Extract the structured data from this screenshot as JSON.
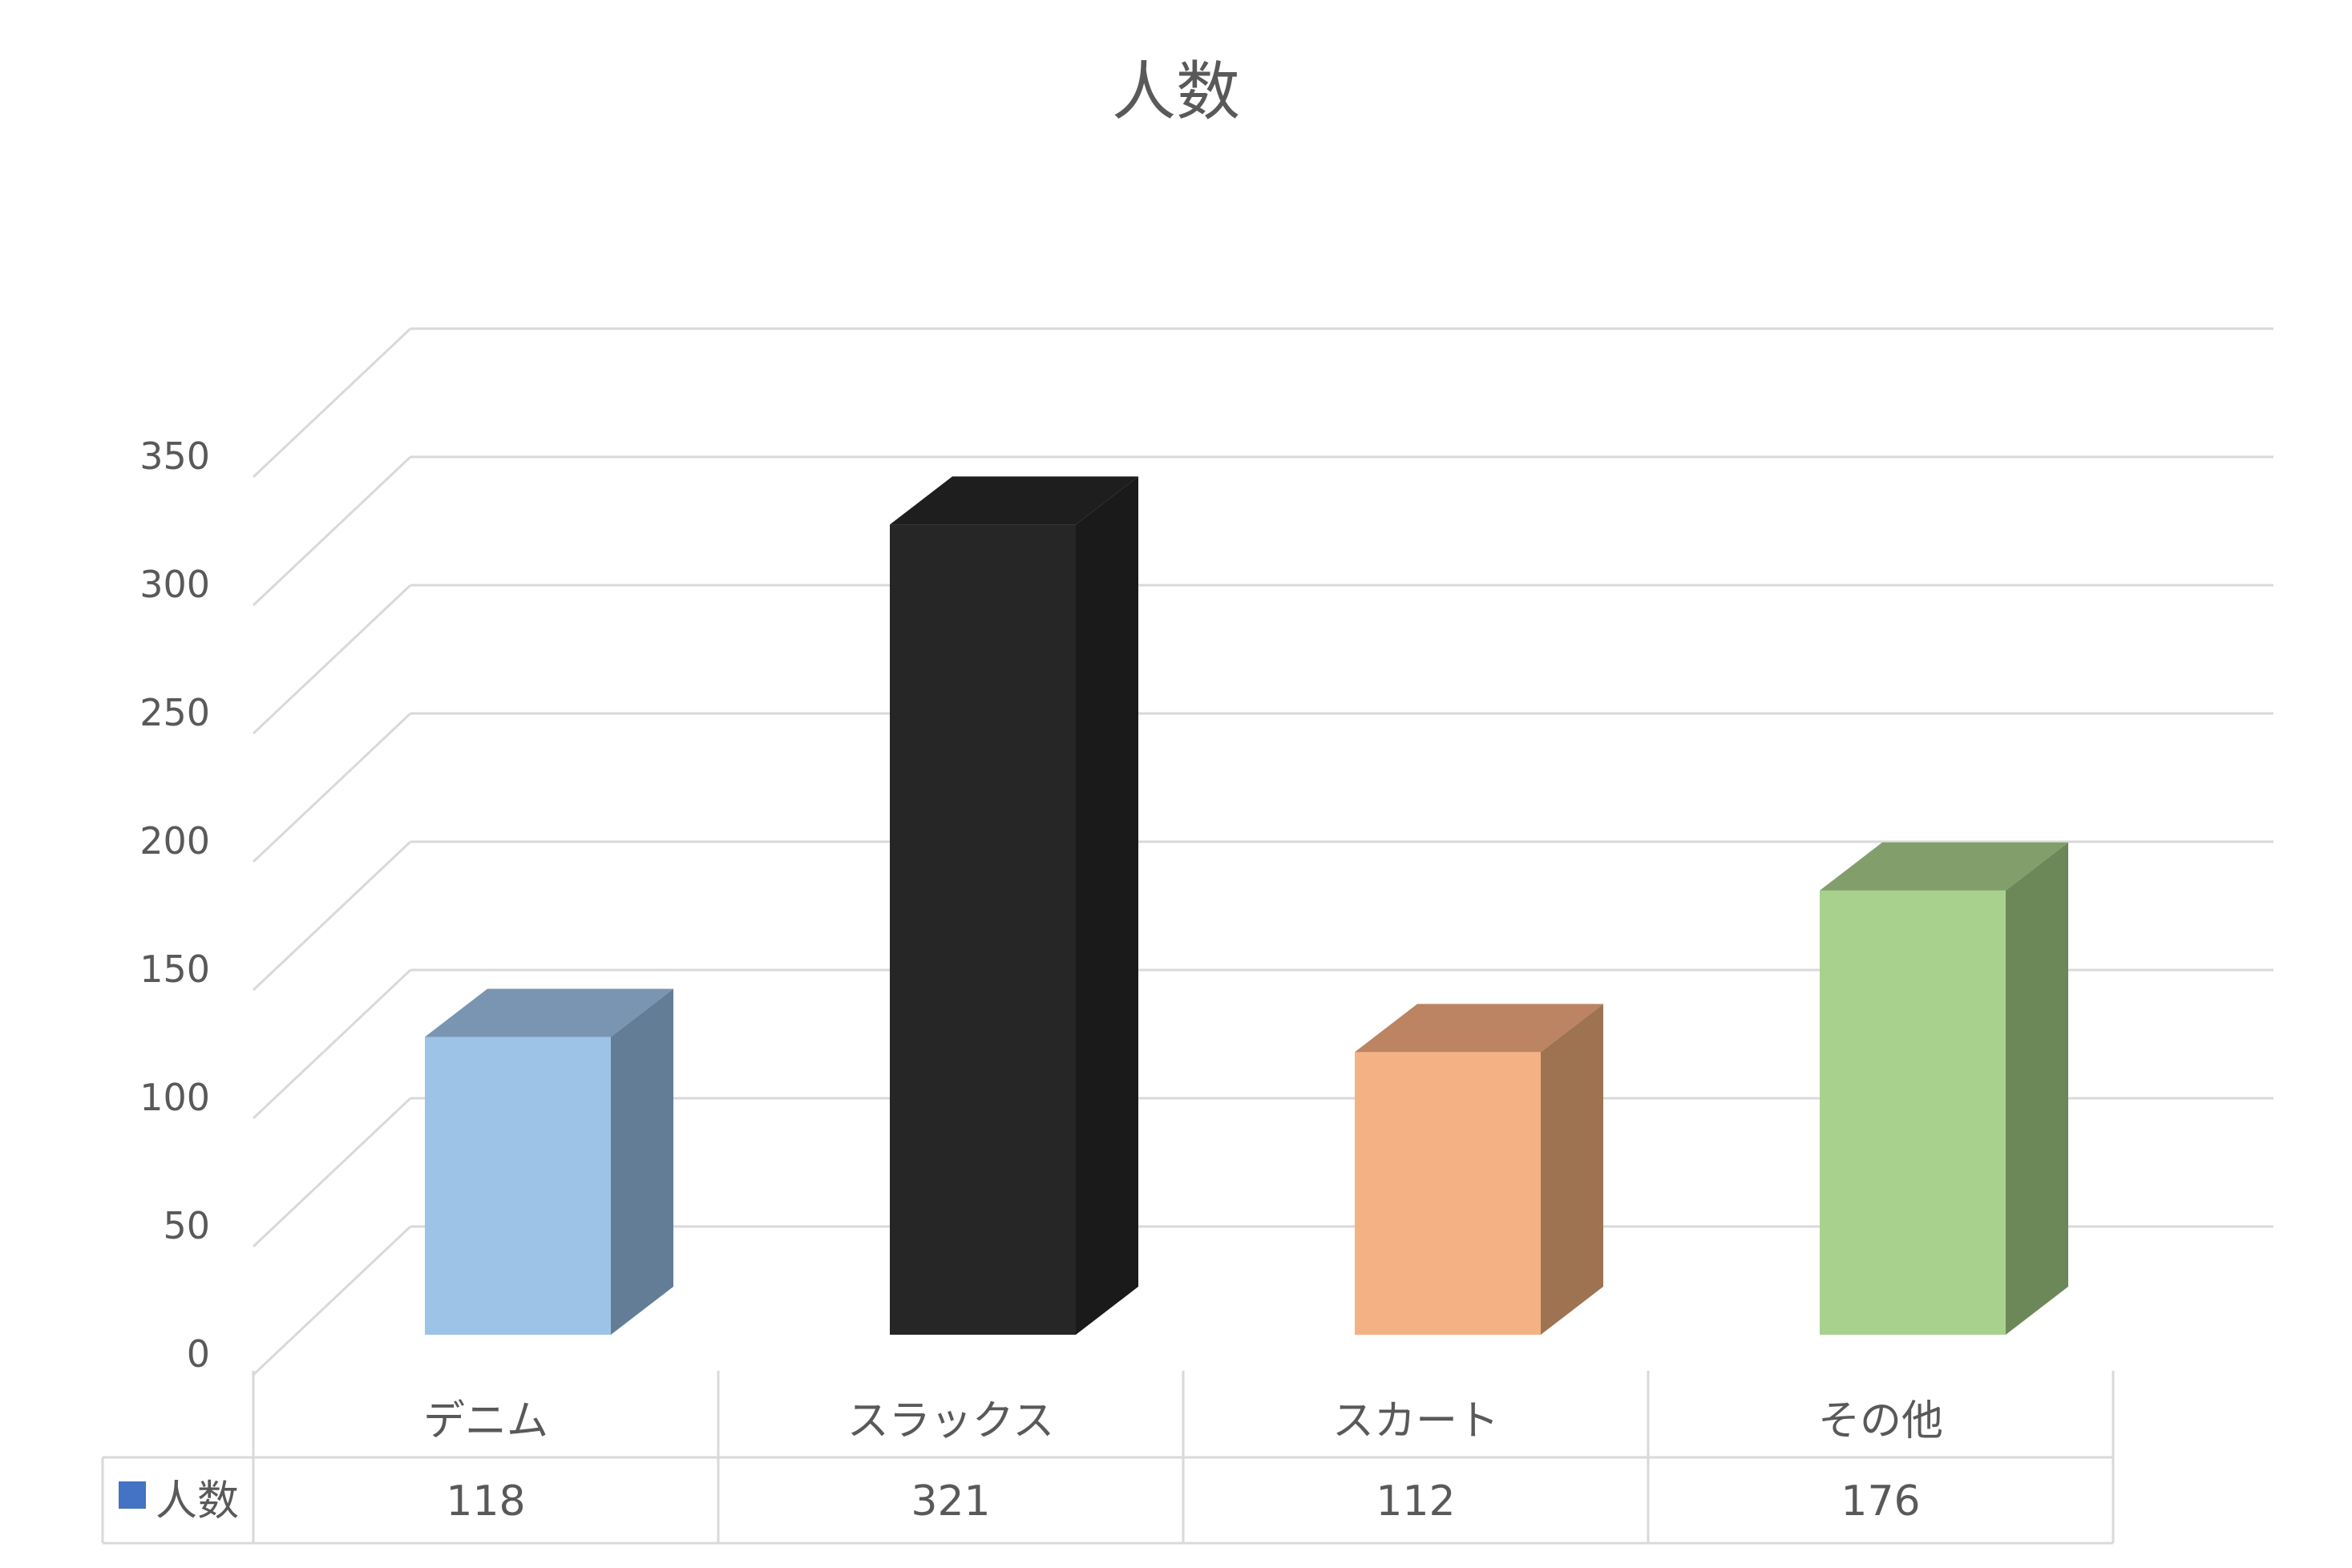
{
  "chart_data": {
    "type": "bar",
    "title": "人数",
    "categories": [
      "デニム",
      "スラックス",
      "スカート",
      "その他"
    ],
    "series": [
      {
        "name": "人数",
        "values": [
          118,
          321,
          112,
          176
        ],
        "colors": [
          "#9DC3E6",
          "#262626",
          "#F4B183",
          "#A9D18E"
        ],
        "side_colors": [
          "#637D96",
          "#1A1A1A",
          "#9E7352",
          "#6C8758"
        ],
        "top_colors": [
          "#7A95B2",
          "#1E1E1E",
          "#BC8462",
          "#819E6B"
        ]
      }
    ],
    "ylim": [
      0,
      350
    ],
    "yticks": [
      0,
      50,
      100,
      150,
      200,
      250,
      300,
      350
    ],
    "grid": true,
    "legend": "data-table",
    "legend_key_color": "#4472C4",
    "gridline_color": "#D9D9D9"
  }
}
